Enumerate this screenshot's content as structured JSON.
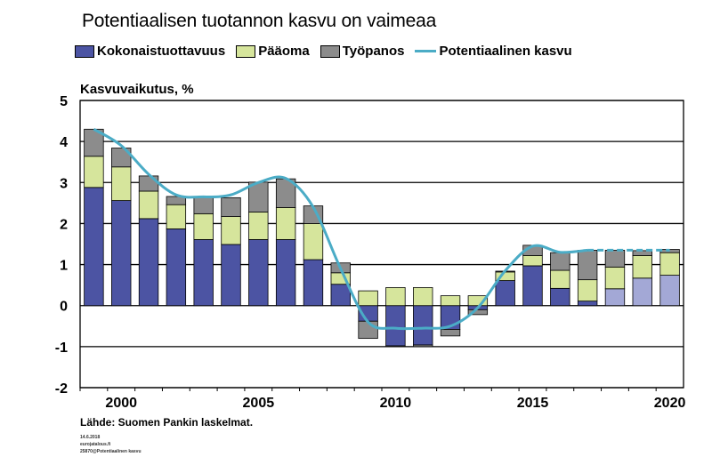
{
  "title": "Potentiaalisen tuotannon kasvu on vaimeaa",
  "legend": [
    {
      "label": "Kokonaistuottavuus",
      "color": "#4c54a3",
      "kind": "bar"
    },
    {
      "label": "Pääoma",
      "color": "#d6e59c",
      "kind": "bar"
    },
    {
      "label": "Työpanos",
      "color": "#8c8c8c",
      "kind": "bar"
    },
    {
      "label": "Potentiaalinen kasvu",
      "color": "#4bacc6",
      "kind": "line"
    }
  ],
  "source": "Lähde: Suomen Pankin laskelmat.",
  "meta": [
    "14.6.2018",
    "eurojatalous.fi",
    "25870@Potentiaalinen kasvu"
  ],
  "chart_data": {
    "type": "bar",
    "stacked": true,
    "ylabel": "Kasvuvaikutus, %",
    "ylim": [
      -2,
      5
    ],
    "yticks": [
      -2,
      -1,
      0,
      1,
      2,
      3,
      4,
      5
    ],
    "grid": true,
    "x": [
      1999,
      2000,
      2001,
      2002,
      2003,
      2004,
      2005,
      2006,
      2007,
      2008,
      2009,
      2010,
      2011,
      2012,
      2013,
      2014,
      2015,
      2016,
      2017,
      2018,
      2019,
      2020
    ],
    "xticks": [
      2000,
      2005,
      2010,
      2015,
      2020
    ],
    "forecast_from": 2018,
    "forecast_color": "#a3a8d6",
    "series": [
      {
        "name": "Kokonaistuottavuus",
        "color": "#4c54a3",
        "values": [
          2.88,
          2.56,
          2.12,
          1.87,
          1.61,
          1.49,
          1.61,
          1.61,
          1.12,
          0.52,
          -0.38,
          -0.98,
          -0.96,
          -0.58,
          -0.1,
          0.61,
          0.97,
          0.42,
          0.11,
          0.41,
          0.67,
          0.74
        ]
      },
      {
        "name": "Pääoma",
        "color": "#d6e59c",
        "values": [
          0.76,
          0.82,
          0.67,
          0.59,
          0.63,
          0.68,
          0.67,
          0.78,
          0.88,
          0.28,
          0.36,
          0.44,
          0.44,
          0.24,
          0.24,
          0.21,
          0.25,
          0.44,
          0.52,
          0.53,
          0.55,
          0.55
        ]
      },
      {
        "name": "Työpanos",
        "color": "#8c8c8c",
        "values": [
          0.66,
          0.46,
          0.37,
          0.2,
          0.41,
          0.46,
          0.73,
          0.7,
          0.43,
          0.24,
          -0.42,
          -0.02,
          -0.04,
          -0.16,
          -0.12,
          0.02,
          0.25,
          0.43,
          0.72,
          0.41,
          0.12,
          0.08
        ]
      }
    ],
    "line": {
      "name": "Potentiaalinen kasvu",
      "color": "#4bacc6",
      "values": [
        4.3,
        3.9,
        3.2,
        2.7,
        2.65,
        2.7,
        3.0,
        3.1,
        2.4,
        0.9,
        -0.4,
        -0.55,
        -0.55,
        -0.5,
        -0.05,
        0.85,
        1.45,
        1.3,
        1.35,
        1.35,
        1.35,
        1.35
      ],
      "dashed_from": 2017
    }
  }
}
